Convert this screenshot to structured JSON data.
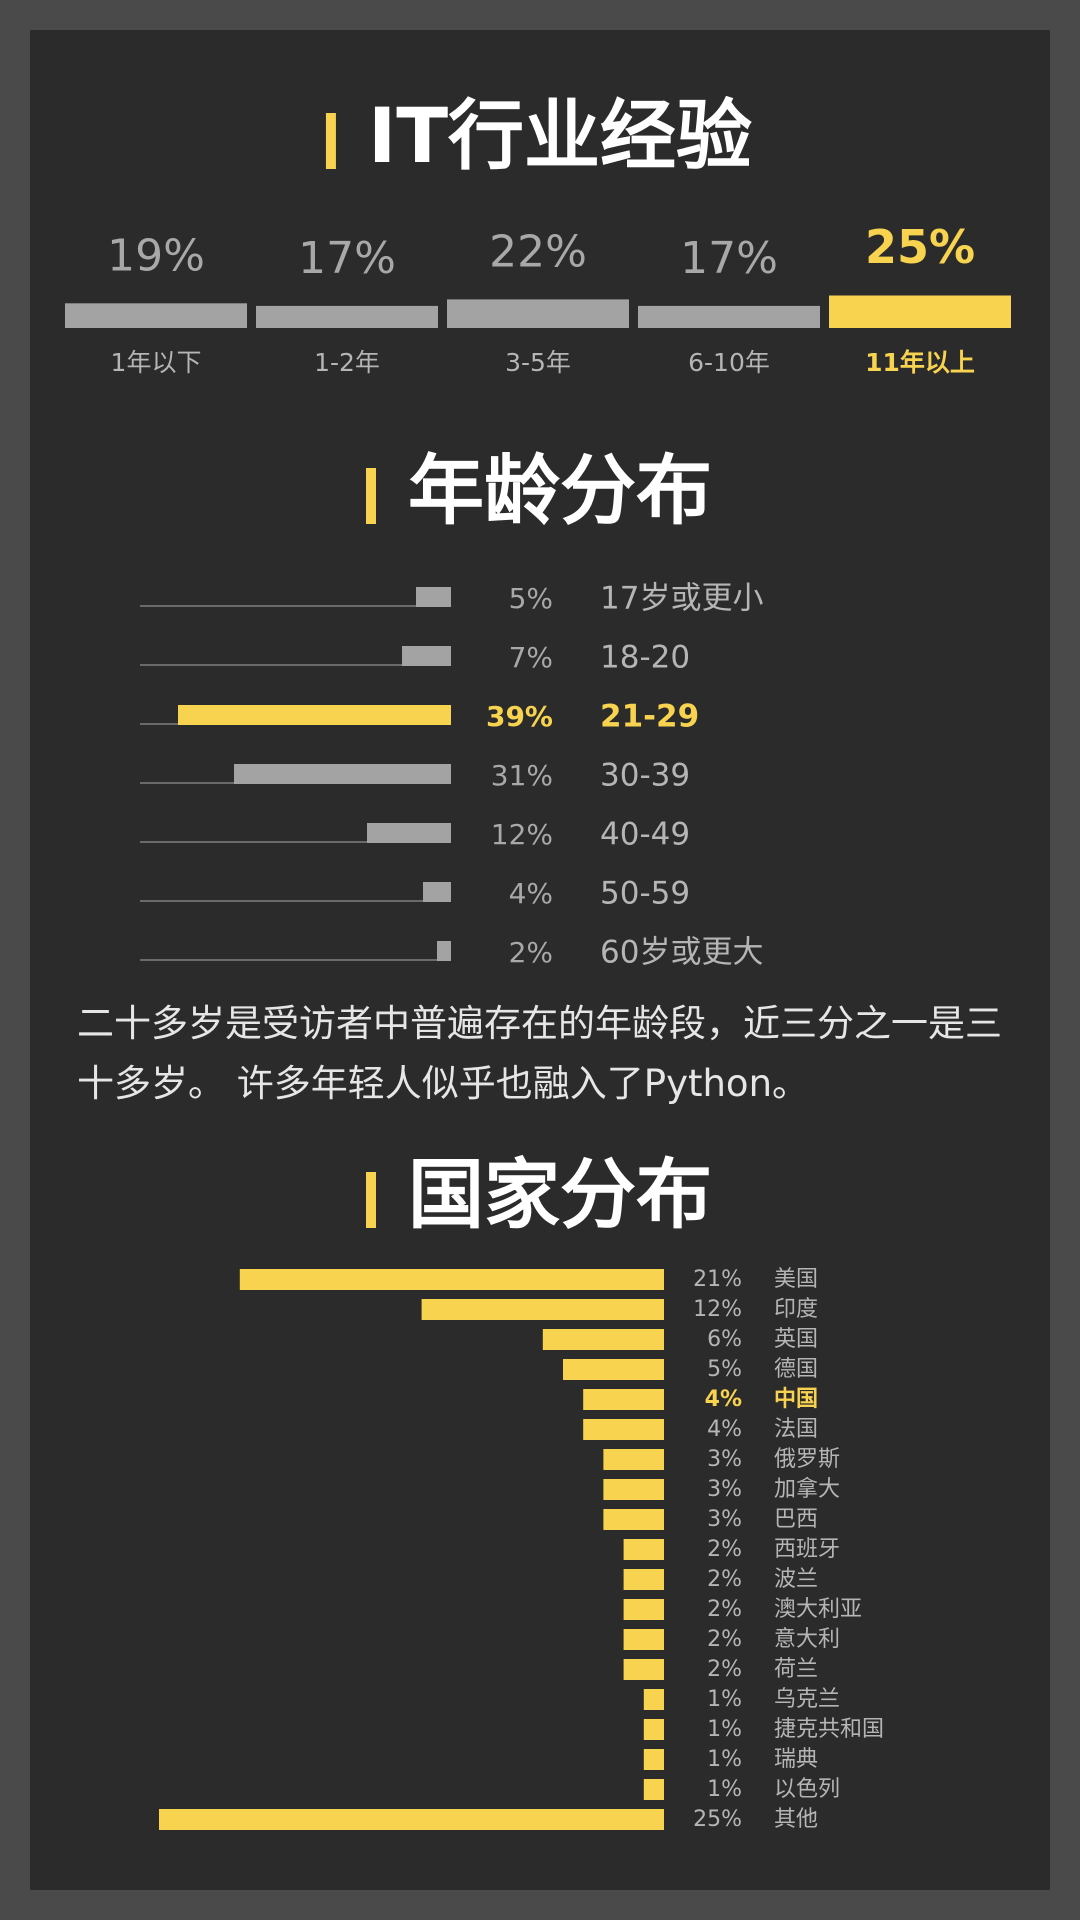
{
  "chart_data": [
    {
      "type": "column",
      "title": "IT行业经验",
      "categories": [
        "1年以下",
        "1-2年",
        "3-5年",
        "6-10年",
        "11年以上"
      ],
      "values": [
        19,
        17,
        22,
        17,
        25
      ],
      "value_labels": [
        "19%",
        "17%",
        "22%",
        "17%",
        "25%"
      ],
      "colors": [
        "#a3a3a3",
        "#a3a3a3",
        "#a3a3a3",
        "#a3a3a3",
        "#f8d34f"
      ]
    },
    {
      "type": "hbar",
      "title": "年龄分布",
      "categories": [
        "17岁或更小",
        "18-20",
        "21-29",
        "30-39",
        "40-49",
        "50-59",
        "60岁或更大"
      ],
      "values": [
        5,
        7,
        39,
        31,
        12,
        4,
        2
      ],
      "value_labels": [
        "5%",
        "7%",
        "39%",
        "31%",
        "12%",
        "4%",
        "2%"
      ],
      "colors": [
        "#a3a3a3",
        "#a3a3a3",
        "#f8d34f",
        "#a3a3a3",
        "#a3a3a3",
        "#a3a3a3",
        "#a3a3a3"
      ],
      "annotation": "二十多岁是受访者中普遍存在的年龄段，近三分之一是三十多岁。 许多年轻人似乎也融入了Python。"
    },
    {
      "type": "hbar-small",
      "title": "国家分布",
      "categories": [
        "美国",
        "印度",
        "英国",
        "德国",
        "中国",
        "法国",
        "俄罗斯",
        "加拿大",
        "巴西",
        "西班牙",
        "波兰",
        "澳大利亚",
        "意大利",
        "荷兰",
        "乌克兰",
        "捷克共和国",
        "瑞典",
        "以色列",
        "其他"
      ],
      "values": [
        21,
        12,
        6,
        5,
        4,
        4,
        3,
        3,
        3,
        2,
        2,
        2,
        2,
        2,
        1,
        1,
        1,
        1,
        25
      ],
      "value_labels": [
        "21%",
        "12%",
        "6%",
        "5%",
        "4%",
        "4%",
        "3%",
        "3%",
        "3%",
        "2%",
        "2%",
        "2%",
        "2%",
        "2%",
        "1%",
        "1%",
        "1%",
        "1%",
        "25%"
      ],
      "color": "#f8d34f",
      "label_colors": [
        "#b5b5b5",
        "#b5b5b5",
        "#b5b5b5",
        "#b5b5b5",
        "#f8d34f",
        "#b5b5b5",
        "#b5b5b5",
        "#b5b5b5",
        "#b5b5b5",
        "#b5b5b5",
        "#b5b5b5",
        "#b5b5b5",
        "#b5b5b5",
        "#b5b5b5",
        "#b5b5b5",
        "#b5b5b5",
        "#b5b5b5",
        "#b5b5b5",
        "#b5b5b5"
      ]
    }
  ]
}
